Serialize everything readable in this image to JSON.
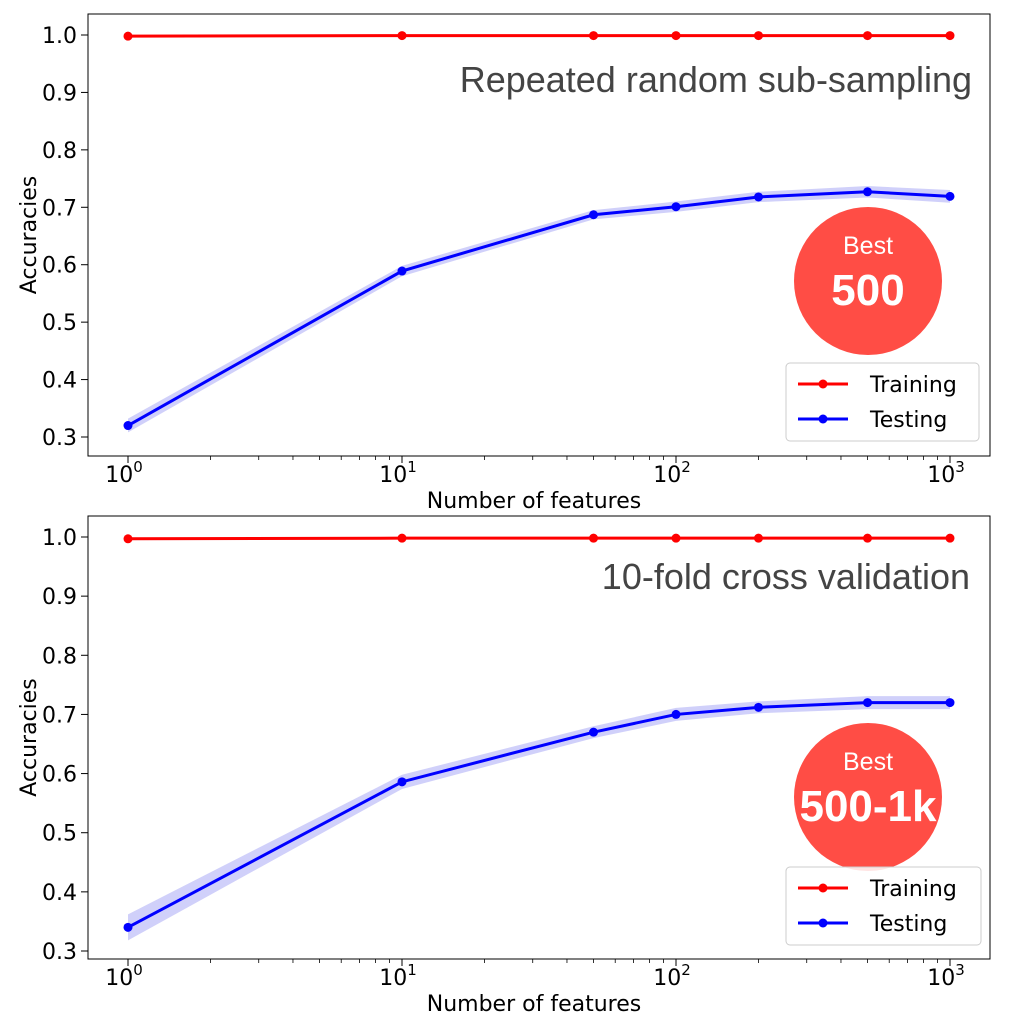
{
  "colors": {
    "training": "#ff0000",
    "testing": "#0000ff",
    "band": "#a9a9f5",
    "badge": "#ff4d45",
    "title": "#444444"
  },
  "chart_data": [
    {
      "type": "line",
      "title": "Repeated random sub-sampling",
      "xlabel": "Number of features",
      "ylabel": "Accuracies",
      "xscale": "log",
      "xlim": [
        1,
        1000
      ],
      "ylim": [
        0.3,
        1.0
      ],
      "yticks": [
        "0.3",
        "0.4",
        "0.5",
        "0.6",
        "0.7",
        "0.8",
        "0.9",
        "1.0"
      ],
      "xtick_bases": [
        "10",
        "10",
        "10",
        "10"
      ],
      "xtick_exponents": [
        "0",
        "1",
        "2",
        "3"
      ],
      "x": [
        1,
        10,
        50,
        100,
        200,
        500,
        1000
      ],
      "series": [
        {
          "name": "Training",
          "values": [
            0.998,
            0.999,
            0.999,
            0.999,
            0.999,
            0.999,
            0.999
          ]
        },
        {
          "name": "Testing",
          "values": [
            0.32,
            0.589,
            0.687,
            0.701,
            0.718,
            0.727,
            0.719
          ],
          "band": [
            0.012,
            0.009,
            0.008,
            0.009,
            0.009,
            0.01,
            0.011
          ]
        }
      ],
      "legend": "lower-right",
      "badge": {
        "label": "Best",
        "value": "500"
      }
    },
    {
      "type": "line",
      "title": "10-fold cross validation",
      "xlabel": "Number of features",
      "ylabel": "Accuracies",
      "xscale": "log",
      "xlim": [
        1,
        1000
      ],
      "ylim": [
        0.3,
        1.0
      ],
      "yticks": [
        "0.3",
        "0.4",
        "0.5",
        "0.6",
        "0.7",
        "0.8",
        "0.9",
        "1.0"
      ],
      "xtick_bases": [
        "10",
        "10",
        "10",
        "10"
      ],
      "xtick_exponents": [
        "0",
        "1",
        "2",
        "3"
      ],
      "x": [
        1,
        10,
        50,
        100,
        200,
        500,
        1000
      ],
      "series": [
        {
          "name": "Training",
          "values": [
            0.997,
            0.998,
            0.998,
            0.998,
            0.998,
            0.998,
            0.998
          ]
        },
        {
          "name": "Testing",
          "values": [
            0.34,
            0.586,
            0.67,
            0.7,
            0.712,
            0.72,
            0.72
          ],
          "band": [
            0.022,
            0.012,
            0.01,
            0.011,
            0.01,
            0.011,
            0.011
          ]
        }
      ],
      "legend": "lower-right",
      "badge": {
        "label": "Best",
        "value": "500-1k"
      }
    }
  ]
}
